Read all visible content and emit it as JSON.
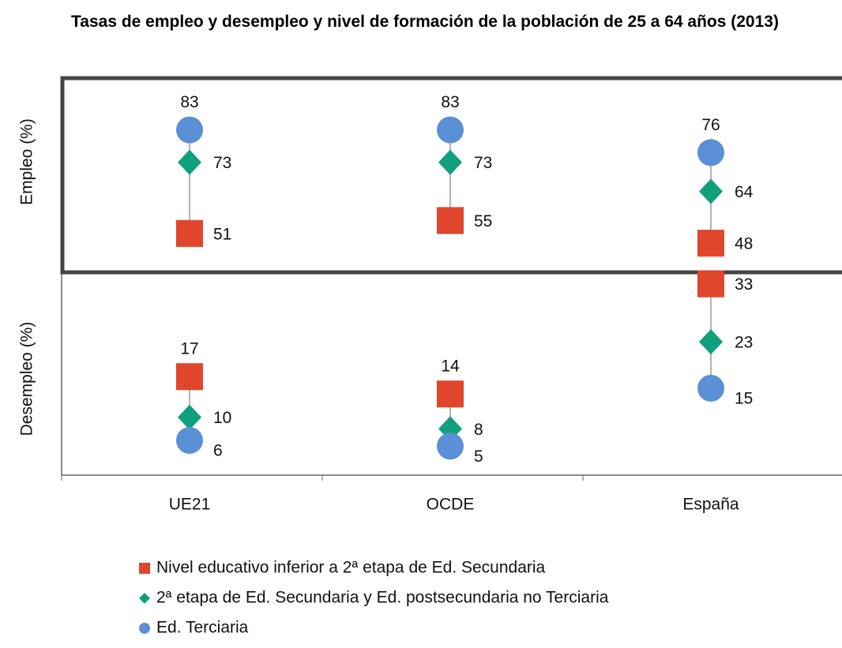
{
  "chart_data": {
    "type": "dot",
    "title": "Tasas de empleo y desempleo y nivel de formación de la población de 25 a 64 años  (2013)",
    "categories": [
      "UE21",
      "OCDE",
      "España"
    ],
    "legend": [
      {
        "name": "Nivel educativo inferior a 2ª etapa de Ed. Secundaria",
        "color": "#e0462b",
        "marker": "square"
      },
      {
        "name": "2ª etapa de Ed. Secundaria y Ed. postsecundaria no Terciaria",
        "color": "#10a07e",
        "marker": "diamond"
      },
      {
        "name": "Ed. Terciaria",
        "color": "#5b8fd6",
        "marker": "circle"
      }
    ],
    "panels": [
      {
        "ylabel": "Empleo (%)",
        "ylim": [
          39,
          99
        ],
        "values": [
          [
            51,
            55,
            48
          ],
          [
            73,
            73,
            64
          ],
          [
            83,
            83,
            76
          ]
        ]
      },
      {
        "ylabel": "Desempleo (%)",
        "ylim": [
          0,
          35
        ],
        "values": [
          [
            17,
            14,
            33
          ],
          [
            10,
            8,
            23
          ],
          [
            6,
            5,
            15
          ]
        ]
      }
    ]
  }
}
